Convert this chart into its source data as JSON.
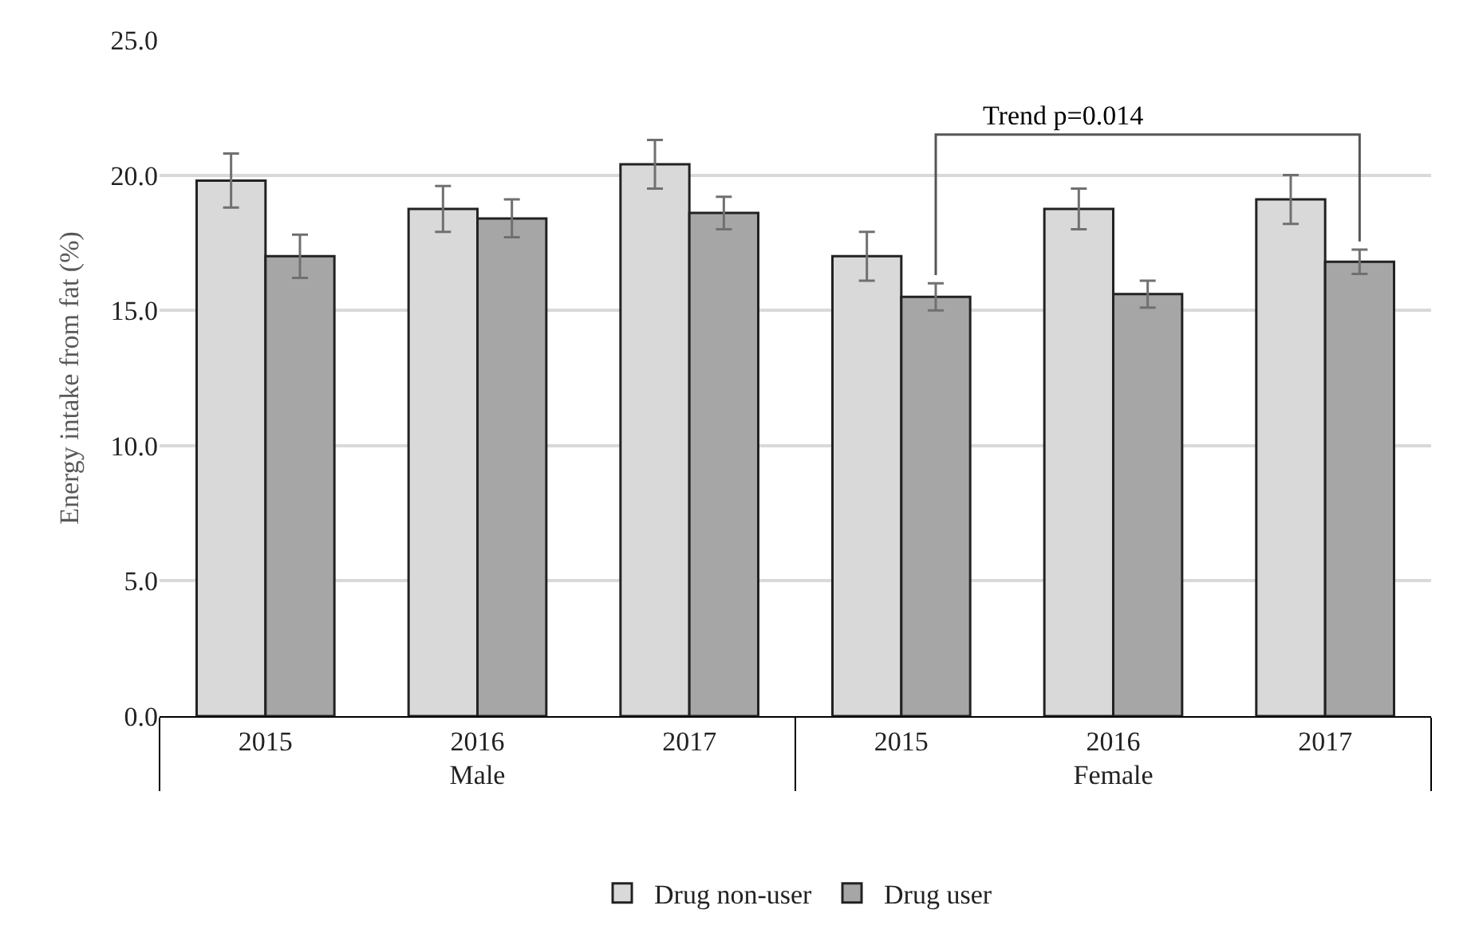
{
  "chart_data": {
    "type": "bar",
    "ylabel": "Energy intake from fat (%)",
    "categories": [
      "2015",
      "2016",
      "2017",
      "2015",
      "2016",
      "2017"
    ],
    "series": [
      {
        "name": "Drug non-user",
        "color": "#d9d9d9",
        "values": [
          19.8,
          18.75,
          20.4,
          17.0,
          18.75,
          19.1
        ],
        "errors": [
          1.0,
          0.85,
          0.9,
          0.9,
          0.75,
          0.9
        ]
      },
      {
        "name": "Drug user",
        "color": "#a6a6a6",
        "values": [
          17.0,
          18.4,
          18.6,
          15.5,
          15.6,
          16.8
        ],
        "errors": [
          0.8,
          0.7,
          0.6,
          0.5,
          0.5,
          0.45
        ]
      }
    ],
    "annotations": [
      "Male",
      "Female",
      "Trend p=0.014"
    ],
    "ylim": [
      0,
      25
    ],
    "yticks": [
      {
        "value": 0,
        "label": "0.0"
      },
      {
        "value": 5,
        "label": "5.0"
      },
      {
        "value": 10,
        "label": "10.0"
      },
      {
        "value": 15,
        "label": "15.0"
      },
      {
        "value": 20,
        "label": "20.0"
      },
      {
        "value": 25,
        "label": "25.0"
      }
    ],
    "grid": "y",
    "legend": "bottom"
  }
}
